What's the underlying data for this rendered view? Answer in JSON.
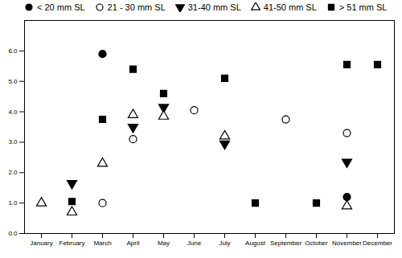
{
  "chart_data": {
    "type": "scatter",
    "categories": [
      "January",
      "February",
      "March",
      "April",
      "May",
      "June",
      "July",
      "August",
      "September",
      "October",
      "November",
      "December"
    ],
    "series": [
      {
        "name": "< 20 mm SL",
        "marker": "circle",
        "color": "#000000",
        "values": [
          null,
          null,
          5.9,
          null,
          null,
          null,
          null,
          null,
          null,
          null,
          1.2,
          null
        ]
      },
      {
        "name": "21 - 30 mm SL",
        "marker": "circle-open",
        "color": "#000000",
        "values": [
          null,
          null,
          1.0,
          3.1,
          null,
          4.05,
          null,
          null,
          3.75,
          null,
          3.3,
          null
        ]
      },
      {
        "name": "31-40 mm SL",
        "marker": "triangle-down",
        "color": "#000000",
        "values": [
          null,
          1.65,
          null,
          3.5,
          4.15,
          null,
          2.95,
          null,
          null,
          null,
          2.35,
          null
        ]
      },
      {
        "name": "41-50 mm SL",
        "marker": "triangle-up-open",
        "color": "#000000",
        "values": [
          1.0,
          0.7,
          2.3,
          3.9,
          3.85,
          null,
          3.2,
          null,
          null,
          null,
          0.9,
          null
        ]
      },
      {
        "name": "> 51 mm SL",
        "marker": "square",
        "color": "#000000",
        "values": [
          null,
          1.05,
          3.75,
          5.4,
          4.6,
          null,
          5.1,
          1.0,
          null,
          1.0,
          5.55,
          5.55
        ]
      }
    ],
    "ylim": [
      0,
      7
    ],
    "yticks": [
      0,
      1,
      2,
      3,
      4,
      5,
      6
    ],
    "grid": false,
    "legend": "upper left"
  }
}
